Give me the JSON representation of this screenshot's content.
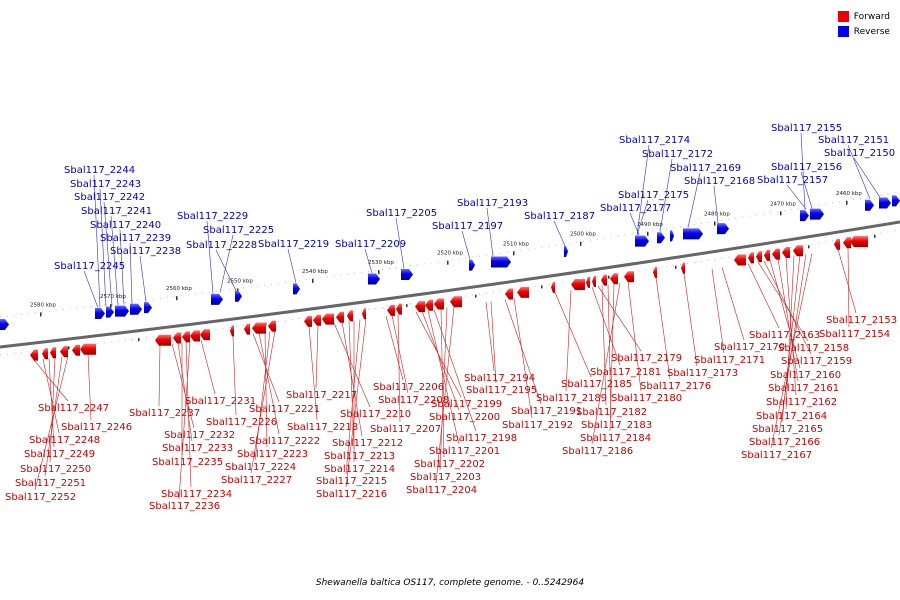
{
  "title": "Shewanella baltica OS117, complete genome. - 0..5242964",
  "legend": [
    {
      "label": "Forward",
      "color": "#ee0000"
    },
    {
      "label": "Reverse",
      "color": "#0000ee"
    }
  ],
  "ticks": [
    "2580 kbp",
    "2570 kbp",
    "2560 kbp",
    "2550 kbp",
    "2540 kbp",
    "2530 kbp",
    "2520 kbp",
    "2510 kbp",
    "2500 kbp",
    "2490 kbp",
    "2480 kbp",
    "2470 kbp",
    "2460 kbp"
  ],
  "reverse_labels": [
    "Sbal117_2244",
    "Sbal117_2243",
    "Sbal117_2242",
    "Sbal117_2241",
    "Sbal117_2240",
    "Sbal117_2239",
    "Sbal117_2238",
    "Sbal117_2245",
    "Sbal117_2229",
    "Sbal117_2225",
    "Sbal117_2228",
    "Sbal117_2219",
    "Sbal117_2209",
    "Sbal117_2205",
    "Sbal117_2197",
    "Sbal117_2193",
    "Sbal117_2187",
    "Sbal117_2174",
    "Sbal117_2172",
    "Sbal117_2175",
    "Sbal117_2177",
    "Sbal117_2169",
    "Sbal117_2168",
    "Sbal117_2155",
    "Sbal117_2151",
    "Sbal117_2150",
    "Sbal117_2156",
    "Sbal117_2157"
  ],
  "forward_labels": [
    "Sbal117_2247",
    "Sbal117_2246",
    "Sbal117_2248",
    "Sbal117_2249",
    "Sbal117_2250",
    "Sbal117_2251",
    "Sbal117_2252",
    "Sbal117_2237",
    "Sbal117_2231",
    "Sbal117_2232",
    "Sbal117_2233",
    "Sbal117_2235",
    "Sbal117_2234",
    "Sbal117_2236",
    "Sbal117_2226",
    "Sbal117_2221",
    "Sbal117_2222",
    "Sbal117_2223",
    "Sbal117_2224",
    "Sbal117_2227",
    "Sbal117_2218",
    "Sbal117_2217",
    "Sbal117_2210",
    "Sbal117_2212",
    "Sbal117_2213",
    "Sbal117_2214",
    "Sbal117_2215",
    "Sbal117_2216",
    "Sbal117_2206",
    "Sbal117_2208",
    "Sbal117_2207",
    "Sbal117_2199",
    "Sbal117_2200",
    "Sbal117_2201",
    "Sbal117_2198",
    "Sbal117_2202",
    "Sbal117_2203",
    "Sbal117_2204",
    "Sbal117_2194",
    "Sbal117_2195",
    "Sbal117_2191",
    "Sbal117_2192",
    "Sbal117_2185",
    "Sbal117_2189",
    "Sbal117_2181",
    "Sbal117_2179",
    "Sbal117_2182",
    "Sbal117_2183",
    "Sbal117_2184",
    "Sbal117_2186",
    "Sbal117_2180",
    "Sbal117_2176",
    "Sbal117_2173",
    "Sbal117_2171",
    "Sbal117_2170",
    "Sbal117_2163",
    "Sbal117_2158",
    "Sbal117_2159",
    "Sbal117_2160",
    "Sbal117_2161",
    "Sbal117_2162",
    "Sbal117_2164",
    "Sbal117_2165",
    "Sbal117_2166",
    "Sbal117_2167",
    "Sbal117_2153",
    "Sbal117_2154"
  ]
}
